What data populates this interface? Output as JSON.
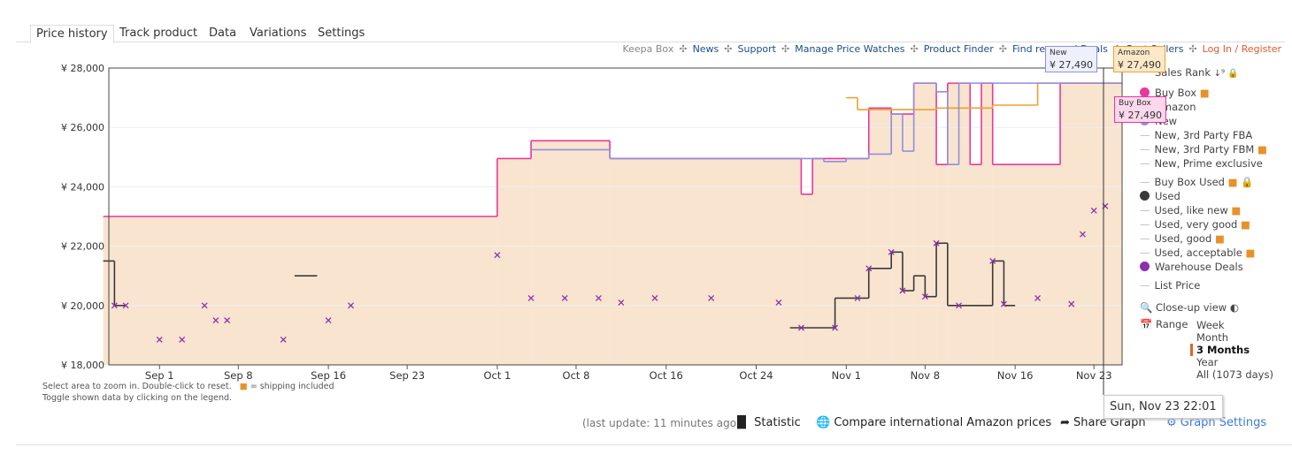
{
  "tabs": [
    "Price history",
    "Track product",
    "Data",
    "Variations",
    "Settings"
  ],
  "top_links": [
    "Keepa Box",
    "News",
    "Support",
    "Manage Price Watches",
    "Product Finder",
    "Find renewed Deals",
    "Rest Sellers"
  ],
  "login": "Log In / Register",
  "chart_data": {
    "type": "line",
    "xlim": [
      "Aug 27",
      "Nov 25"
    ],
    "xticks": [
      "Sep 1",
      "Sep 8",
      "Sep 16",
      "Sep 23",
      "Oct 1",
      "Oct 8",
      "Oct 16",
      "Oct 24",
      "Nov 1",
      "Nov 8",
      "Nov 16",
      "Nov 23"
    ],
    "ylim": [
      18000,
      28000
    ],
    "yticks": [
      {
        "value": 18000,
        "label": "¥ 18,000"
      },
      {
        "value": 20000,
        "label": "¥ 20,000"
      },
      {
        "value": 22000,
        "label": "¥ 22,000"
      },
      {
        "value": 24000,
        "label": "¥ 24,000"
      },
      {
        "value": 26000,
        "label": "¥ 26,000"
      },
      {
        "value": 28000,
        "label": "¥ 28,000"
      }
    ],
    "area_color": "#f9e4cf",
    "series": [
      {
        "name": "Buy Box",
        "color": "#e8389c",
        "style": "step",
        "x": [
          "Aug 27",
          "Oct 1",
          "Oct 4",
          "Oct 11",
          "Oct 28",
          "Oct 29",
          "Nov 3",
          "Nov 5",
          "Nov 7",
          "Nov 9",
          "Nov 10",
          "Nov 12",
          "Nov 13",
          "Nov 14",
          "Nov 20"
        ],
        "values": [
          23000,
          24950,
          25550,
          24950,
          23750,
          24950,
          26650,
          26450,
          27490,
          24750,
          27490,
          24750,
          27490,
          24750,
          27490
        ]
      },
      {
        "name": "Amazon",
        "color": "#f0a030",
        "style": "step",
        "x": [
          "Nov 1",
          "Nov 2",
          "Nov 9",
          "Nov 14",
          "Nov 18"
        ],
        "values": [
          27000,
          26600,
          26650,
          26750,
          27490
        ]
      },
      {
        "name": "New",
        "color": "#8f8fe0",
        "style": "step",
        "x": [
          "Oct 4",
          "Oct 11",
          "Oct 30",
          "Nov 1",
          "Nov 3",
          "Nov 5",
          "Nov 6",
          "Nov 7",
          "Nov 9",
          "Nov 10",
          "Nov 11",
          "Nov 20"
        ],
        "values": [
          25250,
          24950,
          24850,
          24950,
          25100,
          26450,
          25200,
          27490,
          27200,
          24750,
          27490,
          27490
        ]
      },
      {
        "name": "Used",
        "color": "#3a3a3a",
        "style": "step",
        "x": [
          "Aug 27",
          "Aug 28",
          "Aug 29",
          "Sep 13",
          "Sep 15",
          "Oct 27",
          "Oct 31",
          "Nov 3",
          "Nov 5",
          "Nov 6",
          "Nov 7",
          "Nov 8",
          "Nov 9",
          "Nov 10",
          "Nov 14",
          "Nov 15",
          "Nov 16"
        ],
        "values": [
          21500,
          20000,
          null,
          21000,
          null,
          19250,
          20250,
          21250,
          21800,
          20500,
          21000,
          20300,
          22100,
          20000,
          21500,
          20000,
          null
        ]
      },
      {
        "name": "Warehouse Deals",
        "color": "#8b2fb0",
        "style": "marker",
        "x": [
          "Aug 28",
          "Aug 29",
          "Sep 1",
          "Sep 3",
          "Sep 5",
          "Sep 6",
          "Sep 7",
          "Sep 12",
          "Sep 16",
          "Sep 18",
          "Oct 1",
          "Oct 4",
          "Oct 7",
          "Oct 10",
          "Oct 12",
          "Oct 15",
          "Oct 20",
          "Oct 26",
          "Oct 28",
          "Oct 31",
          "Nov 2",
          "Nov 3",
          "Nov 5",
          "Nov 6",
          "Nov 8",
          "Nov 9",
          "Nov 11",
          "Nov 14",
          "Nov 15",
          "Nov 18",
          "Nov 21",
          "Nov 22",
          "Nov 23",
          "Nov 24"
        ],
        "values": [
          20000,
          20000,
          18850,
          18850,
          20000,
          19500,
          19500,
          18850,
          19500,
          20000,
          21700,
          20250,
          20250,
          20250,
          20100,
          20250,
          20250,
          20100,
          19250,
          19250,
          20250,
          21250,
          21800,
          20500,
          20300,
          22100,
          20000,
          21500,
          20050,
          20250,
          20050,
          22400,
          23200,
          23350
        ]
      }
    ]
  },
  "legend_extra": [
    "Sales Rank",
    "New, 3rd Party FBA",
    "New, 3rd Party FBM",
    "New, Prime exclusive",
    "Buy Box Used",
    "Used, like new",
    "Used, very good",
    "Used, good",
    "Used, acceptable",
    "List Price"
  ],
  "tooltips": [
    {
      "label": "New",
      "value_label": "¥ 27,490"
    },
    {
      "label": "Amazon",
      "value_label": "¥ 27,490"
    },
    {
      "label": "Buy Box",
      "value_label": "¥ 27,490"
    },
    {
      "label": "Sun, Nov 23 22:01"
    }
  ],
  "controls": {
    "close_up": "Close-up view",
    "range": "Range",
    "options": [
      "Week",
      "Month",
      "3 Months",
      "Year",
      "All (1073 days)"
    ],
    "selected": 2
  },
  "hints": [
    "Select area to zoom in. Double-click to reset.",
    "= shipping included",
    "Toggle shown data by clicking on the legend."
  ],
  "footer": {
    "last_update": "(last update: 11 minutes ago)",
    "buttons": [
      "Statistic",
      "Compare international Amazon prices",
      "Share Graph",
      "Graph Settings"
    ]
  }
}
